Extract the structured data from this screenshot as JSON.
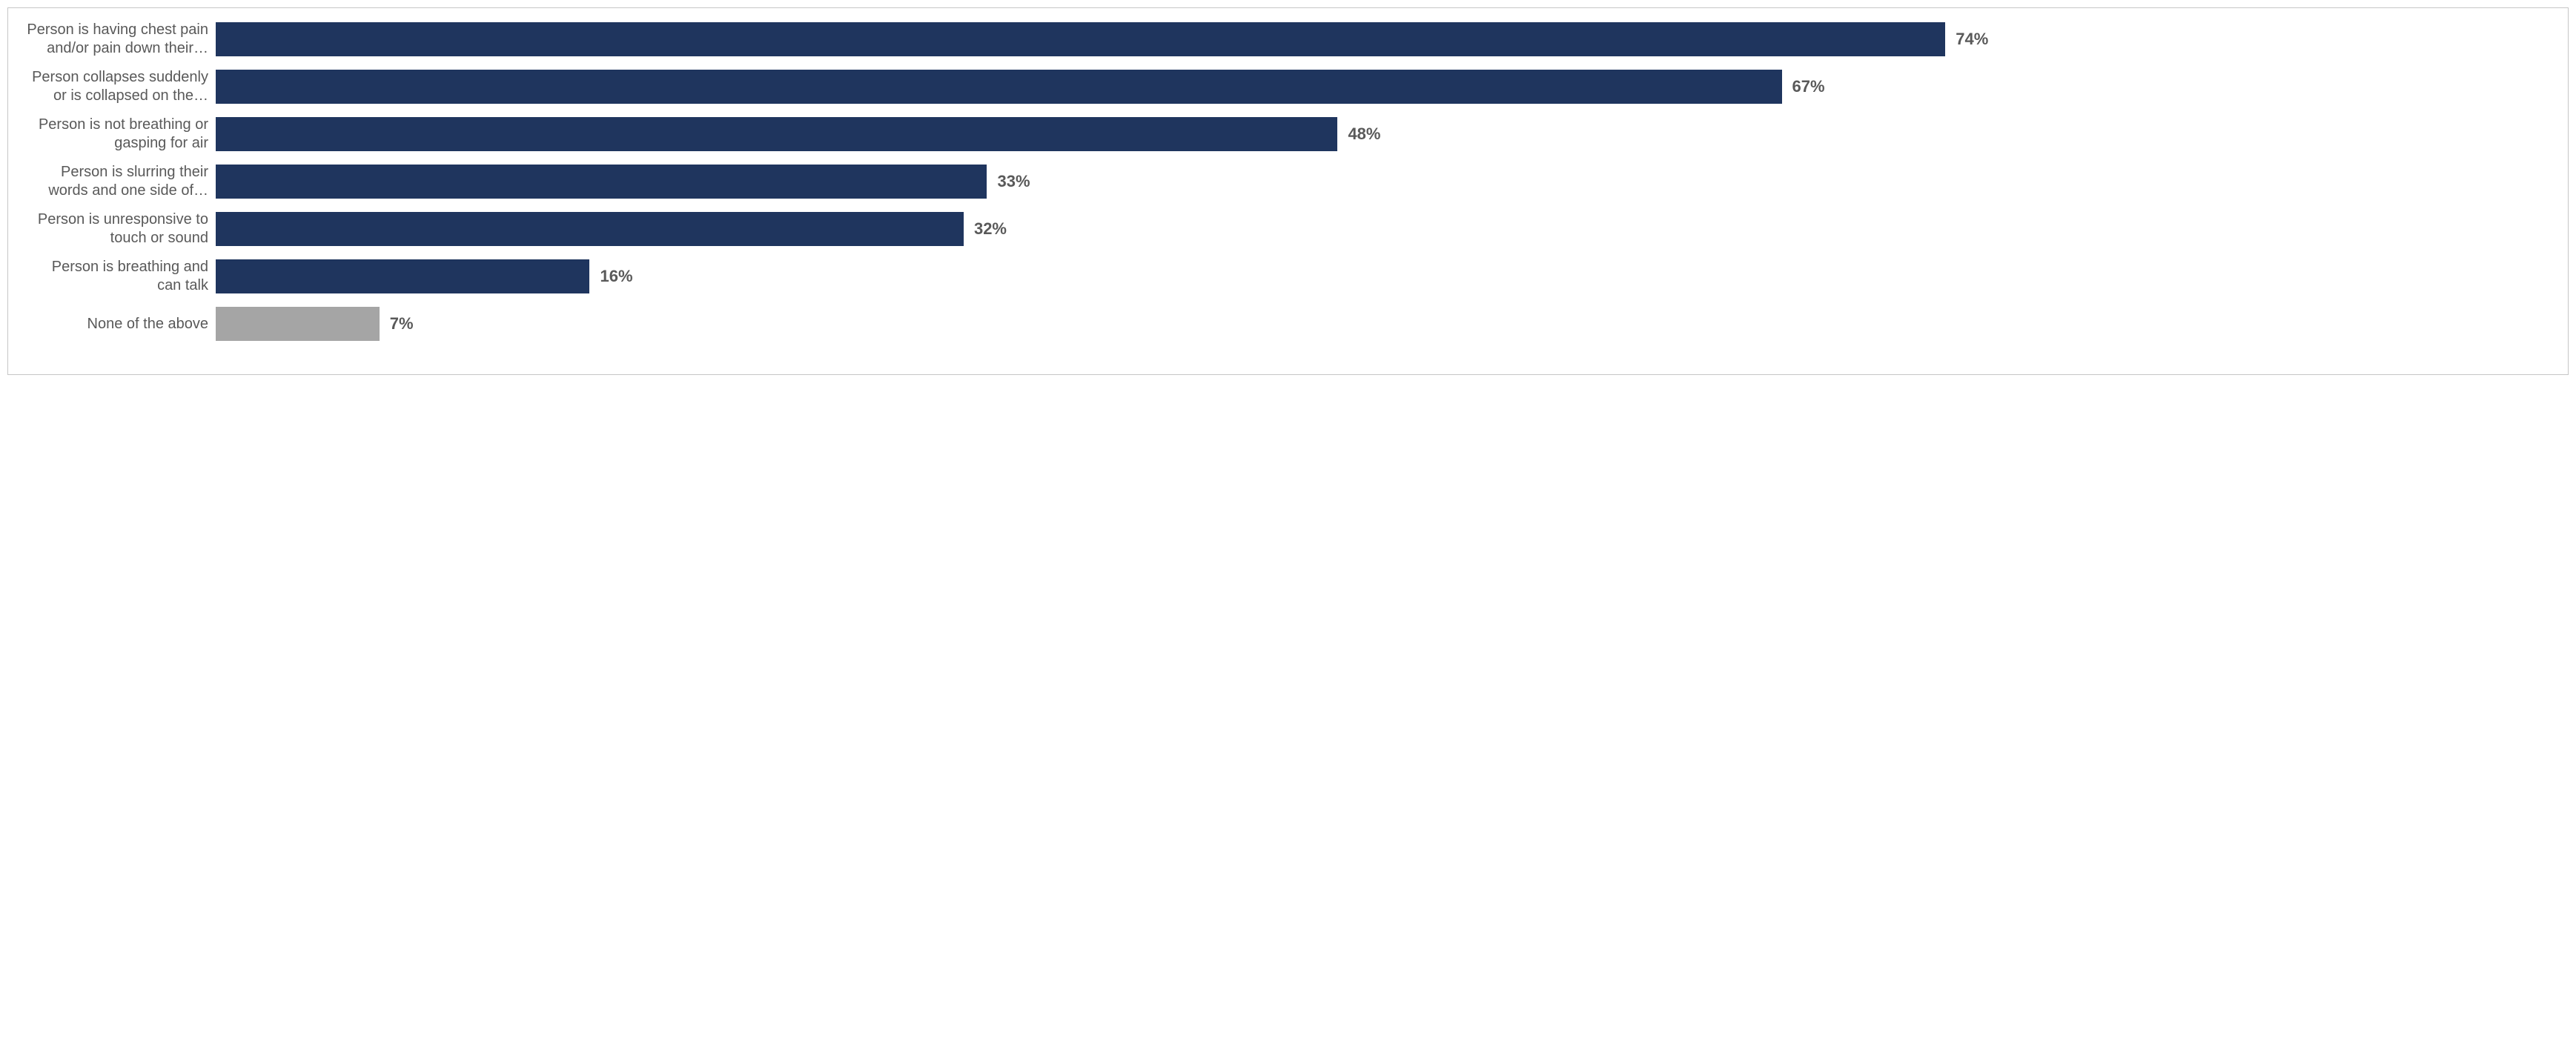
{
  "chart": {
    "type": "bar-horizontal",
    "xmax": 100,
    "bar_color_default": "#1f355e",
    "bar_color_alt": "#a5a5a5",
    "label_color": "#595959",
    "value_color": "#595959",
    "label_fontsize": 20,
    "value_fontsize": 22,
    "border_color": "#c6c6c6",
    "background_color": "#ffffff",
    "rows": [
      {
        "label_l1": "Person is having chest pain",
        "label_l2": "and/or pain down their…",
        "value": 74,
        "value_text": "74%",
        "color": "#1f355e"
      },
      {
        "label_l1": "Person collapses suddenly",
        "label_l2": "or is collapsed on the…",
        "value": 67,
        "value_text": "67%",
        "color": "#1f355e"
      },
      {
        "label_l1": "Person is not breathing or",
        "label_l2": "gasping for air",
        "value": 48,
        "value_text": "48%",
        "color": "#1f355e"
      },
      {
        "label_l1": "Person is slurring their",
        "label_l2": "words and one side of…",
        "value": 33,
        "value_text": "33%",
        "color": "#1f355e"
      },
      {
        "label_l1": "Person is unresponsive to",
        "label_l2": "touch or sound",
        "value": 32,
        "value_text": "32%",
        "color": "#1f355e"
      },
      {
        "label_l1": "Person is breathing and",
        "label_l2": "can talk",
        "value": 16,
        "value_text": "16%",
        "color": "#1f355e"
      },
      {
        "label_l1": "None of the above",
        "label_l2": "",
        "value": 7,
        "value_text": "7%",
        "color": "#a5a5a5"
      }
    ]
  }
}
